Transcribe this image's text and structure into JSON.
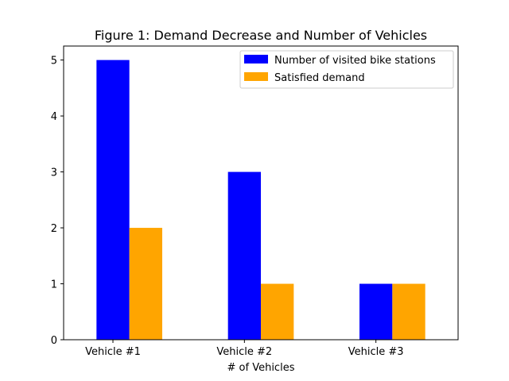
{
  "chart_data": {
    "type": "bar",
    "title": "Figure 1: Demand Decrease and Number of Vehicles",
    "xlabel": "# of Vehicles",
    "ylabel": "",
    "categories": [
      "Vehicle #1",
      "Vehicle #2",
      "Vehicle #3"
    ],
    "series": [
      {
        "name": "Number of visited bike stations",
        "values": [
          5,
          3,
          1
        ],
        "color": "#0000ff"
      },
      {
        "name": "Satisfied demand",
        "values": [
          2,
          1,
          1
        ],
        "color": "#ffa500"
      }
    ],
    "ylim": [
      0,
      5.25
    ],
    "yticks": [
      0,
      1,
      2,
      3,
      4,
      5
    ],
    "grid": false,
    "legend_position": "top-right"
  }
}
